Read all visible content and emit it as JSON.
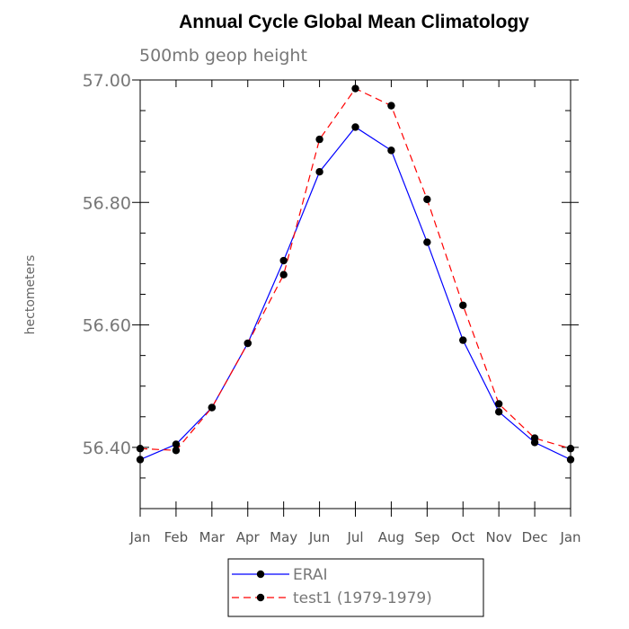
{
  "title": "Annual Cycle Global Mean Climatology",
  "subtitle": "500mb geop height",
  "chart_data": {
    "type": "line",
    "title": "Annual Cycle Global Mean Climatology",
    "subtitle": "500mb geop height",
    "xlabel": "",
    "ylabel": "hectometers",
    "categories": [
      "Jan",
      "Feb",
      "Mar",
      "Apr",
      "May",
      "Jun",
      "Jul",
      "Aug",
      "Sep",
      "Oct",
      "Nov",
      "Dec",
      "Jan"
    ],
    "ylim": [
      56.3,
      57.0
    ],
    "yticks": [
      "56.40",
      "56.60",
      "56.80",
      "57.00"
    ],
    "yminor_step": 0.05,
    "grid": false,
    "legend_position": "bottom-center",
    "series": [
      {
        "name": "ERAI",
        "color": "#0000ff",
        "dash": "solid",
        "values": [
          56.38,
          56.405,
          56.465,
          56.57,
          56.705,
          56.85,
          56.923,
          56.885,
          56.735,
          56.575,
          56.458,
          56.408,
          56.38
        ]
      },
      {
        "name": "test1 (1979-1979)",
        "color": "#ff0000",
        "dash": "dashed",
        "values": [
          56.398,
          56.395,
          56.465,
          56.57,
          56.682,
          56.903,
          56.986,
          56.958,
          56.805,
          56.632,
          56.471,
          56.415,
          56.398
        ]
      }
    ]
  }
}
